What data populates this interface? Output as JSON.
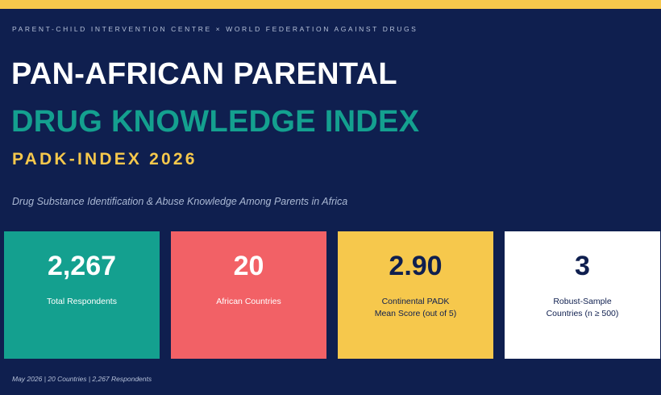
{
  "header": {
    "kicker": "PARENT-CHILD INTERVENTION CENTRE  ×  WORLD FEDERATION AGAINST DRUGS",
    "title_line1": "PAN-AFRICAN PARENTAL",
    "title_line2": "DRUG KNOWLEDGE INDEX",
    "title_line3": "PADK-INDEX 2026",
    "subtitle": "Drug Substance Identification & Abuse Knowledge Among Parents in Africa"
  },
  "stats": [
    {
      "value": "2,267",
      "label_line1": "Total Respondents",
      "label_line2": ""
    },
    {
      "value": "20",
      "label_line1": "African Countries",
      "label_line2": ""
    },
    {
      "value": "2.90",
      "label_line1": "Continental PADK",
      "label_line2": "Mean Score (out of 5)"
    },
    {
      "value": "3",
      "label_line1": "Robust-Sample",
      "label_line2": "Countries (n ≥ 500)"
    }
  ],
  "footer": {
    "text": "May 2026  |  20 Countries  |  2,267 Respondents"
  },
  "colors": {
    "background": "#0f1f4f",
    "accent_yellow": "#f6c84c",
    "accent_teal": "#14a08f",
    "accent_coral": "#f26166",
    "white": "#ffffff"
  }
}
